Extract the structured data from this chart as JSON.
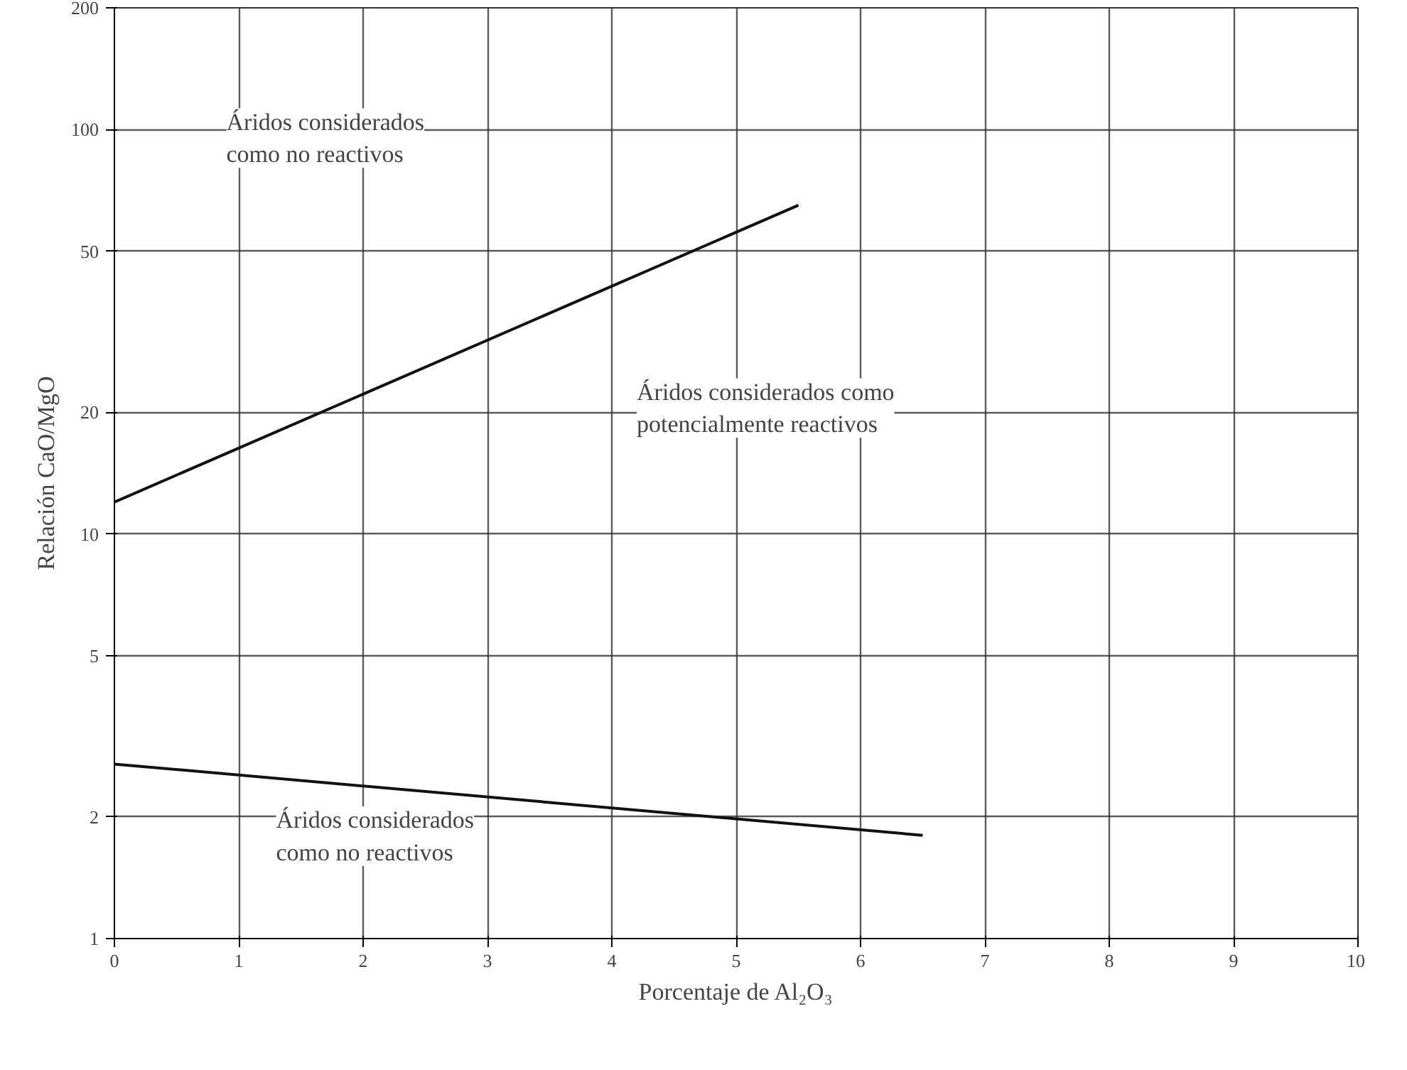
{
  "chart_data": {
    "type": "line",
    "xlabel": "Porcentaje de Al₂O₃",
    "ylabel": "Relación CaO/MgO",
    "log": "y",
    "grid": true,
    "marker": "none",
    "line_style": "solid",
    "xlim": [
      0,
      10
    ],
    "xticks": [
      0,
      1,
      2,
      3,
      4,
      5,
      6,
      7,
      8,
      9,
      10
    ],
    "ylim": [
      1,
      200
    ],
    "yticks": [
      1,
      2,
      5,
      10,
      20,
      50,
      100,
      200
    ],
    "series": [
      {
        "color": "#111111",
        "x": [
          0,
          5.5
        ],
        "values": [
          12,
          65
        ]
      },
      {
        "color": "#111111",
        "x": [
          0,
          6.5
        ],
        "values": [
          2.7,
          1.8
        ]
      }
    ],
    "annotations": [
      "Áridos considerados\ncomo no reactivos",
      "Áridos considerados como\npotencialmente reactivos",
      "Áridos considerados\ncomo no reactivos"
    ]
  }
}
